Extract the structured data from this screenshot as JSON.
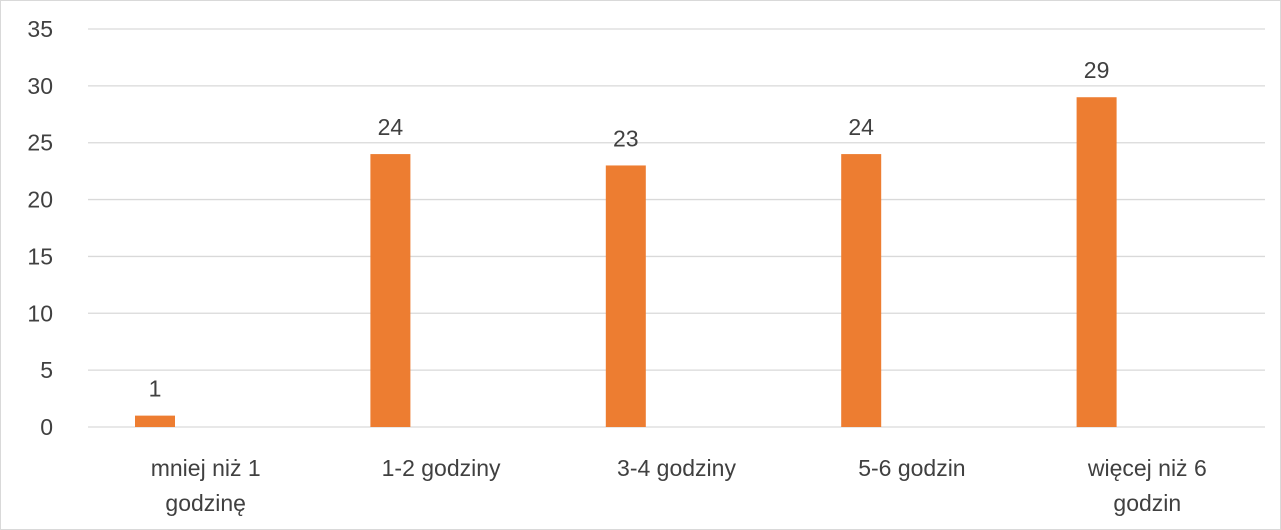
{
  "chart_data": {
    "type": "bar",
    "categories": [
      [
        "mniej niż 1",
        "godzinę"
      ],
      [
        "1-2 godziny"
      ],
      [
        "3-4 godziny"
      ],
      [
        "5-6 godzin"
      ],
      [
        "więcej niż 6",
        "godzin"
      ]
    ],
    "values": [
      1,
      24,
      23,
      24,
      29
    ],
    "data_labels": [
      "1",
      "24",
      "23",
      "24",
      "29"
    ],
    "title": "",
    "xlabel": "",
    "ylabel": "",
    "ylim": [
      0,
      35
    ],
    "yticks": [
      0,
      5,
      10,
      15,
      20,
      25,
      30,
      35
    ],
    "grid": true,
    "legend": "none",
    "bar_color": "#ed7d31"
  }
}
